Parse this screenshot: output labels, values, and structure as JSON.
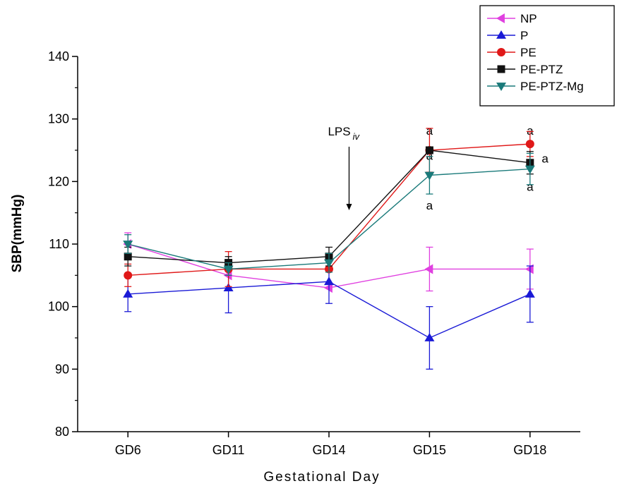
{
  "chart_data": {
    "type": "line",
    "xlabel": "Gestational Day",
    "ylabel": "SBP(mmHg)",
    "categories": [
      "GD6",
      "GD11",
      "GD14",
      "GD15",
      "GD18"
    ],
    "ylim": [
      80,
      140
    ],
    "yticks": [
      80,
      90,
      100,
      110,
      120,
      130,
      140
    ],
    "grid": false,
    "legend_position": "top-right",
    "series": [
      {
        "name": "NP",
        "color": "#e040e0",
        "marker": "triangle-left",
        "values": [
          110,
          105,
          103,
          106,
          106
        ],
        "errors": [
          1.8,
          0,
          0,
          3.5,
          3.2
        ]
      },
      {
        "name": "P",
        "color": "#1a1ad6",
        "marker": "triangle-up",
        "values": [
          102,
          103,
          104,
          95,
          102
        ],
        "errors": [
          2.8,
          4,
          3.5,
          5,
          4.5
        ]
      },
      {
        "name": "PE",
        "color": "#e01818",
        "marker": "circle",
        "values": [
          105,
          106,
          106,
          125,
          126
        ],
        "errors": [
          1.8,
          2.8,
          0,
          3.5,
          2
        ]
      },
      {
        "name": "PE-PTZ",
        "color": "#111111",
        "marker": "square",
        "values": [
          108,
          107,
          108,
          125,
          123
        ],
        "errors": [
          1.5,
          1,
          1.5,
          0,
          1.8
        ]
      },
      {
        "name": "PE-PTZ-Mg",
        "color": "#1a7a7a",
        "marker": "triangle-down",
        "values": [
          110,
          106,
          107,
          121,
          122
        ],
        "errors": [
          1.5,
          1,
          1.5,
          3,
          2.5
        ]
      }
    ],
    "annotations": {
      "lps_label": "LPS",
      "lps_sub": "iv",
      "lps_x": 2.2,
      "significance": [
        {
          "text": "a",
          "x": 3,
          "y": 127.5
        },
        {
          "text": "a",
          "x": 3,
          "y": 123.5
        },
        {
          "text": "a",
          "x": 3,
          "y": 115.5
        },
        {
          "text": "a",
          "x": 4,
          "y": 127.5
        },
        {
          "text": "a",
          "x": 4.15,
          "y": 123
        },
        {
          "text": "a",
          "x": 4,
          "y": 118.5
        }
      ]
    }
  }
}
